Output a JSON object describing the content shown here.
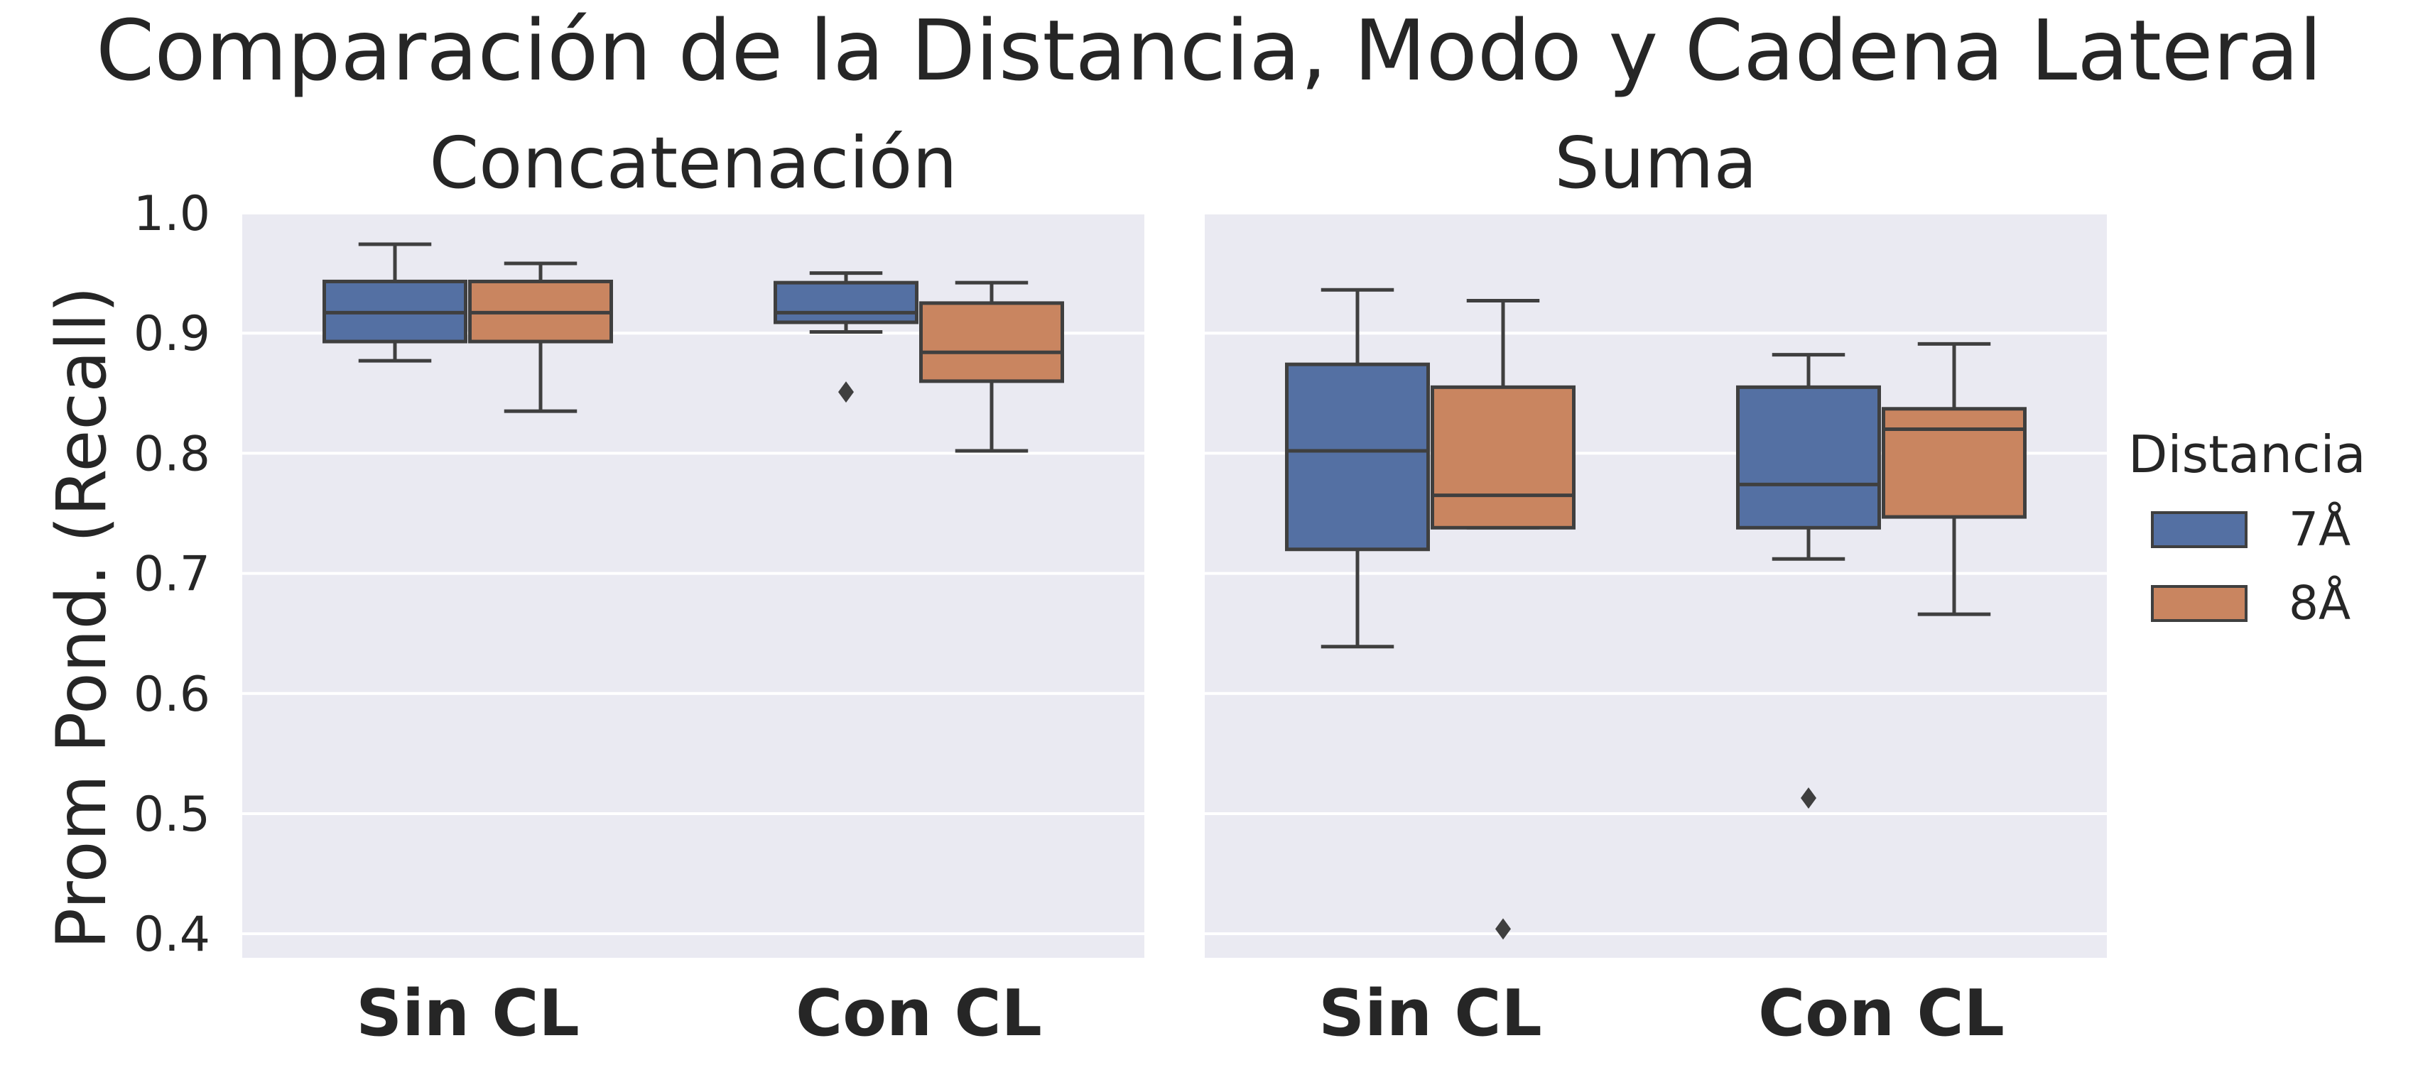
{
  "chart_data": {
    "type": "box",
    "title": "Comparación de la Distancia, Modo y Cadena Lateral",
    "ylabel": "Prom Pond. (Recall)",
    "ylim": [
      0.38,
      1.0
    ],
    "yticks": [
      "0.4",
      "0.5",
      "0.6",
      "0.7",
      "0.8",
      "0.9",
      "1.0"
    ],
    "categories": [
      "Sin CL",
      "Con CL"
    ],
    "grid": true,
    "legend": {
      "title": "Distancia",
      "position": "right",
      "entries": [
        {
          "label": "7Å",
          "color": "#5470a3"
        },
        {
          "label": "8Å",
          "color": "#c98560"
        }
      ]
    },
    "panels": [
      {
        "title": "Concatenación",
        "boxes": [
          {
            "category": "Sin CL",
            "series": "7Å",
            "whisker_low": 0.877,
            "q1": 0.893,
            "median": 0.917,
            "q3": 0.943,
            "whisker_high": 0.974,
            "outliers": []
          },
          {
            "category": "Sin CL",
            "series": "8Å",
            "whisker_low": 0.835,
            "q1": 0.893,
            "median": 0.917,
            "q3": 0.943,
            "whisker_high": 0.958,
            "outliers": []
          },
          {
            "category": "Con CL",
            "series": "7Å",
            "whisker_low": 0.901,
            "q1": 0.909,
            "median": 0.917,
            "q3": 0.942,
            "whisker_high": 0.95,
            "outliers": [
              0.851
            ]
          },
          {
            "category": "Con CL",
            "series": "8Å",
            "whisker_low": 0.802,
            "q1": 0.86,
            "median": 0.884,
            "q3": 0.925,
            "whisker_high": 0.942,
            "outliers": []
          }
        ]
      },
      {
        "title": "Suma",
        "boxes": [
          {
            "category": "Sin CL",
            "series": "7Å",
            "whisker_low": 0.639,
            "q1": 0.72,
            "median": 0.802,
            "q3": 0.874,
            "whisker_high": 0.936,
            "outliers": []
          },
          {
            "category": "Sin CL",
            "series": "8Å",
            "whisker_low": 0.738,
            "q1": 0.738,
            "median": 0.765,
            "q3": 0.855,
            "whisker_high": 0.927,
            "outliers": [
              0.404
            ]
          },
          {
            "category": "Con CL",
            "series": "7Å",
            "whisker_low": 0.712,
            "q1": 0.738,
            "median": 0.774,
            "q3": 0.855,
            "whisker_high": 0.882,
            "outliers": [
              0.513
            ]
          },
          {
            "category": "Con CL",
            "series": "8Å",
            "whisker_low": 0.666,
            "q1": 0.747,
            "median": 0.82,
            "q3": 0.837,
            "whisker_high": 0.891,
            "outliers": []
          }
        ]
      }
    ]
  }
}
